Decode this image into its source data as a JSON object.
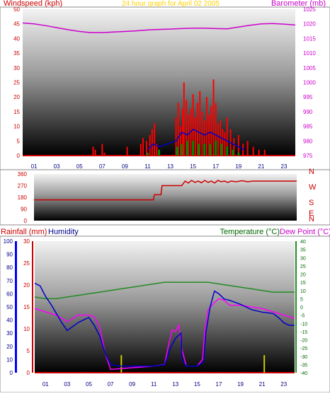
{
  "chart_data": [
    {
      "id": "wind_baro",
      "type": "line",
      "title": "24 hour graph for April 02 2005",
      "title_color": "#ffd200",
      "left_label": "Windspeed (kph)",
      "left_label_color": "#cc0000",
      "right_label": "Barometer (mb)",
      "right_label_color": "#cc00cc",
      "left_axis": {
        "min": 0,
        "max": 50,
        "ticks": [
          0,
          5,
          10,
          15,
          20,
          25,
          30,
          35,
          40,
          45,
          50
        ]
      },
      "right_axis": {
        "min": 975,
        "max": 1025,
        "ticks": [
          975,
          980,
          985,
          990,
          995,
          1000,
          1005,
          1010,
          1015,
          1020,
          1025
        ]
      },
      "x_axis": {
        "min": 0,
        "max": 24,
        "tick_labels": [
          "01",
          "03",
          "05",
          "07",
          "09",
          "11",
          "13",
          "15",
          "17",
          "19",
          "21",
          "23"
        ]
      },
      "barometer": {
        "color": "#cc00cc",
        "points": [
          [
            0,
            1020.3
          ],
          [
            1,
            1020
          ],
          [
            2,
            1019.4
          ],
          [
            3,
            1018.7
          ],
          [
            4,
            1018
          ],
          [
            5,
            1017.4
          ],
          [
            6,
            1017
          ],
          [
            7,
            1017
          ],
          [
            8,
            1017.2
          ],
          [
            9,
            1017.4
          ],
          [
            10,
            1017.6
          ],
          [
            11,
            1017.9
          ],
          [
            12,
            1018.1
          ],
          [
            13,
            1018.2
          ],
          [
            14,
            1018.4
          ],
          [
            15,
            1018.5
          ],
          [
            16,
            1018.5
          ],
          [
            17,
            1018.4
          ],
          [
            18,
            1018.3
          ],
          [
            19,
            1018.9
          ],
          [
            20,
            1019.5
          ],
          [
            21,
            1020
          ],
          [
            22,
            1020.1
          ],
          [
            23,
            1019.9
          ],
          [
            24,
            1019.6
          ]
        ]
      },
      "wind_gust": {
        "color": "#ff0000",
        "points": [
          [
            6.2,
            3
          ],
          [
            6.4,
            2
          ],
          [
            7,
            4
          ],
          [
            7.2,
            1
          ],
          [
            9.2,
            3
          ],
          [
            10.4,
            4
          ],
          [
            10.6,
            6
          ],
          [
            10.9,
            5
          ],
          [
            11.2,
            7
          ],
          [
            11.4,
            9
          ],
          [
            11.6,
            11
          ],
          [
            11.8,
            4
          ],
          [
            13.5,
            13
          ],
          [
            13.7,
            18
          ],
          [
            13.9,
            10
          ],
          [
            14.1,
            16
          ],
          [
            14.2,
            25
          ],
          [
            14.4,
            19
          ],
          [
            14.6,
            14
          ],
          [
            14.8,
            16
          ],
          [
            15,
            21
          ],
          [
            15.2,
            13
          ],
          [
            15.4,
            18
          ],
          [
            15.6,
            22
          ],
          [
            15.8,
            15
          ],
          [
            16,
            12
          ],
          [
            16.2,
            20
          ],
          [
            16.4,
            14
          ],
          [
            16.6,
            17
          ],
          [
            16.8,
            26
          ],
          [
            17,
            18
          ],
          [
            17.2,
            11
          ],
          [
            17.4,
            12
          ],
          [
            17.6,
            9
          ],
          [
            17.8,
            8
          ],
          [
            18,
            13
          ],
          [
            18.3,
            9
          ],
          [
            18.6,
            6
          ],
          [
            19,
            7
          ],
          [
            19.4,
            4
          ],
          [
            19.8,
            5
          ],
          [
            20.3,
            3
          ],
          [
            20.8,
            2
          ],
          [
            21.3,
            2
          ]
        ]
      },
      "wind_avg": {
        "color": "#0000cc",
        "points": [
          [
            11,
            2
          ],
          [
            11.5,
            4
          ],
          [
            12,
            3
          ],
          [
            13.5,
            5
          ],
          [
            14,
            8
          ],
          [
            14.5,
            7
          ],
          [
            15,
            9
          ],
          [
            15.5,
            8
          ],
          [
            16,
            7
          ],
          [
            16.5,
            8
          ],
          [
            17,
            7
          ],
          [
            17.5,
            6
          ],
          [
            18,
            5
          ],
          [
            18.5,
            4
          ],
          [
            19,
            3
          ],
          [
            19.5,
            2
          ]
        ]
      },
      "wind_dir_variation": {
        "color": "#008800",
        "points": [
          [
            11,
            1
          ],
          [
            12,
            2
          ],
          [
            13.6,
            3
          ],
          [
            14,
            4
          ],
          [
            14.5,
            5
          ],
          [
            15,
            5
          ],
          [
            15.5,
            4
          ],
          [
            16,
            4
          ],
          [
            16.5,
            4
          ],
          [
            17,
            5
          ],
          [
            17.5,
            4
          ],
          [
            18,
            3
          ],
          [
            18.5,
            2
          ],
          [
            19,
            1
          ]
        ]
      }
    },
    {
      "id": "wind_direction",
      "type": "line",
      "axis": {
        "min": 0,
        "max": 360,
        "ticks": [
          0,
          90,
          180,
          270,
          360
        ]
      },
      "compass_labels": [
        "N",
        "W",
        "S",
        "E",
        "N"
      ],
      "compass_color": "#cc0000",
      "x_axis": {
        "min": 0,
        "max": 24
      },
      "direction": {
        "color": "#cc0000",
        "points": [
          [
            0,
            160
          ],
          [
            1,
            160
          ],
          [
            2,
            160
          ],
          [
            3,
            160
          ],
          [
            4,
            160
          ],
          [
            5,
            160
          ],
          [
            6,
            160
          ],
          [
            7,
            160
          ],
          [
            8,
            160
          ],
          [
            9,
            160
          ],
          [
            10,
            160
          ],
          [
            10.9,
            160
          ],
          [
            11,
            200
          ],
          [
            11.6,
            200
          ],
          [
            11.7,
            270
          ],
          [
            12,
            270
          ],
          [
            13,
            270
          ],
          [
            13.5,
            270
          ],
          [
            13.8,
            305
          ],
          [
            14.1,
            290
          ],
          [
            14.4,
            310
          ],
          [
            14.7,
            295
          ],
          [
            15,
            305
          ],
          [
            15.3,
            292
          ],
          [
            15.6,
            310
          ],
          [
            15.9,
            295
          ],
          [
            16.2,
            305
          ],
          [
            16.5,
            290
          ],
          [
            16.8,
            310
          ],
          [
            17.1,
            300
          ],
          [
            17.4,
            305
          ],
          [
            17.7,
            295
          ],
          [
            18,
            305
          ],
          [
            18.5,
            300
          ],
          [
            19,
            308
          ],
          [
            19.5,
            300
          ],
          [
            20,
            305
          ],
          [
            21,
            305
          ],
          [
            22,
            305
          ],
          [
            23,
            305
          ],
          [
            24,
            305
          ]
        ]
      }
    },
    {
      "id": "rain_hum_temp",
      "type": "line",
      "left_label_rain": "Rainfall (mm)",
      "left_label_rain_color": "#cc0000",
      "left_label_hum": "Humidity",
      "left_label_hum_color": "#00008b",
      "right_label_temp": "Temperature (°C)",
      "right_label_temp_color": "#006600",
      "right_label_dew": "Dew Point (°C)",
      "right_label_dew_color": "#cc00cc",
      "humidity_axis": {
        "min": 0,
        "max": 100,
        "ticks": [
          0,
          10,
          20,
          30,
          40,
          50,
          60,
          70,
          80,
          90,
          100
        ]
      },
      "rain_axis": {
        "min": 0,
        "max": 30,
        "ticks": [
          0,
          5,
          10,
          15,
          20,
          25,
          30
        ]
      },
      "temp_axis": {
        "min": -40,
        "max": 40,
        "ticks": [
          40,
          35,
          30,
          25,
          20,
          15,
          10,
          5,
          0,
          -5,
          -10,
          -15,
          -20,
          -25,
          -30,
          -35,
          -40
        ]
      },
      "x_axis": {
        "min": 0,
        "max": 24,
        "tick_labels": [
          "01",
          "03",
          "05",
          "07",
          "09",
          "11",
          "13",
          "15",
          "17",
          "19",
          "21",
          "23"
        ]
      },
      "humidity": {
        "color": "#0000cc",
        "points": [
          [
            0,
            68
          ],
          [
            0.5,
            66
          ],
          [
            1,
            58
          ],
          [
            1.5,
            52
          ],
          [
            2,
            45
          ],
          [
            2.5,
            38
          ],
          [
            3,
            32
          ],
          [
            3.5,
            35
          ],
          [
            4,
            38
          ],
          [
            4.5,
            40
          ],
          [
            5,
            42
          ],
          [
            5.5,
            36
          ],
          [
            6,
            28
          ],
          [
            6.5,
            15
          ],
          [
            7,
            6
          ],
          [
            8,
            5
          ],
          [
            9,
            5
          ],
          [
            10,
            5
          ],
          [
            11,
            5
          ],
          [
            12,
            6
          ],
          [
            12.6,
            20
          ],
          [
            13,
            26
          ],
          [
            13.5,
            30
          ],
          [
            13.6,
            10
          ],
          [
            14,
            5
          ],
          [
            14.6,
            5
          ],
          [
            15,
            5
          ],
          [
            15.6,
            8
          ],
          [
            15.8,
            30
          ],
          [
            16.2,
            50
          ],
          [
            16.6,
            62
          ],
          [
            17,
            60
          ],
          [
            17.5,
            56
          ],
          [
            18,
            55
          ],
          [
            19,
            52
          ],
          [
            19.5,
            50
          ],
          [
            20,
            48
          ],
          [
            21,
            46
          ],
          [
            22,
            45
          ],
          [
            22.5,
            42
          ],
          [
            23,
            38
          ],
          [
            23.5,
            36
          ],
          [
            24,
            36
          ]
        ]
      },
      "dew_point": {
        "color": "#ff00ff",
        "points": [
          [
            0,
            -1
          ],
          [
            1,
            -3
          ],
          [
            2,
            -5
          ],
          [
            2.5,
            -7
          ],
          [
            3,
            -9
          ],
          [
            3.5,
            -7
          ],
          [
            4,
            -5
          ],
          [
            5,
            -5
          ],
          [
            5.5,
            -6
          ],
          [
            6,
            -12
          ],
          [
            6.5,
            -28
          ],
          [
            7,
            -38
          ],
          [
            9,
            -37
          ],
          [
            11,
            -36
          ],
          [
            12,
            -35
          ],
          [
            12.4,
            -22
          ],
          [
            12.7,
            -14
          ],
          [
            13,
            -15
          ],
          [
            13.3,
            -11
          ],
          [
            13.6,
            -26
          ],
          [
            14,
            -36
          ],
          [
            15,
            -36
          ],
          [
            15.5,
            -32
          ],
          [
            15.7,
            -15
          ],
          [
            16,
            -2
          ],
          [
            16.5,
            2
          ],
          [
            17,
            5
          ],
          [
            17.5,
            4
          ],
          [
            18,
            1
          ],
          [
            19,
            1
          ],
          [
            20,
            0
          ],
          [
            21,
            -1
          ],
          [
            22,
            -3
          ],
          [
            23,
            -5
          ],
          [
            24,
            -7
          ]
        ]
      },
      "temperature": {
        "color": "#228b22",
        "points": [
          [
            0,
            6
          ],
          [
            1,
            5
          ],
          [
            2,
            5
          ],
          [
            3,
            6
          ],
          [
            4,
            7
          ],
          [
            5,
            8
          ],
          [
            6,
            9
          ],
          [
            7,
            10
          ],
          [
            8,
            11
          ],
          [
            9,
            12
          ],
          [
            10,
            13
          ],
          [
            11,
            14
          ],
          [
            12,
            15
          ],
          [
            13,
            15
          ],
          [
            14,
            15
          ],
          [
            15,
            15
          ],
          [
            16,
            15
          ],
          [
            17,
            14
          ],
          [
            18,
            13
          ],
          [
            19,
            12
          ],
          [
            20,
            11
          ],
          [
            21,
            10
          ],
          [
            22,
            9
          ],
          [
            23,
            9
          ],
          [
            24,
            9
          ]
        ]
      },
      "rainfall": {
        "color": "#cccc00",
        "points": [
          [
            8,
            4
          ],
          [
            21.2,
            4
          ]
        ]
      }
    }
  ]
}
